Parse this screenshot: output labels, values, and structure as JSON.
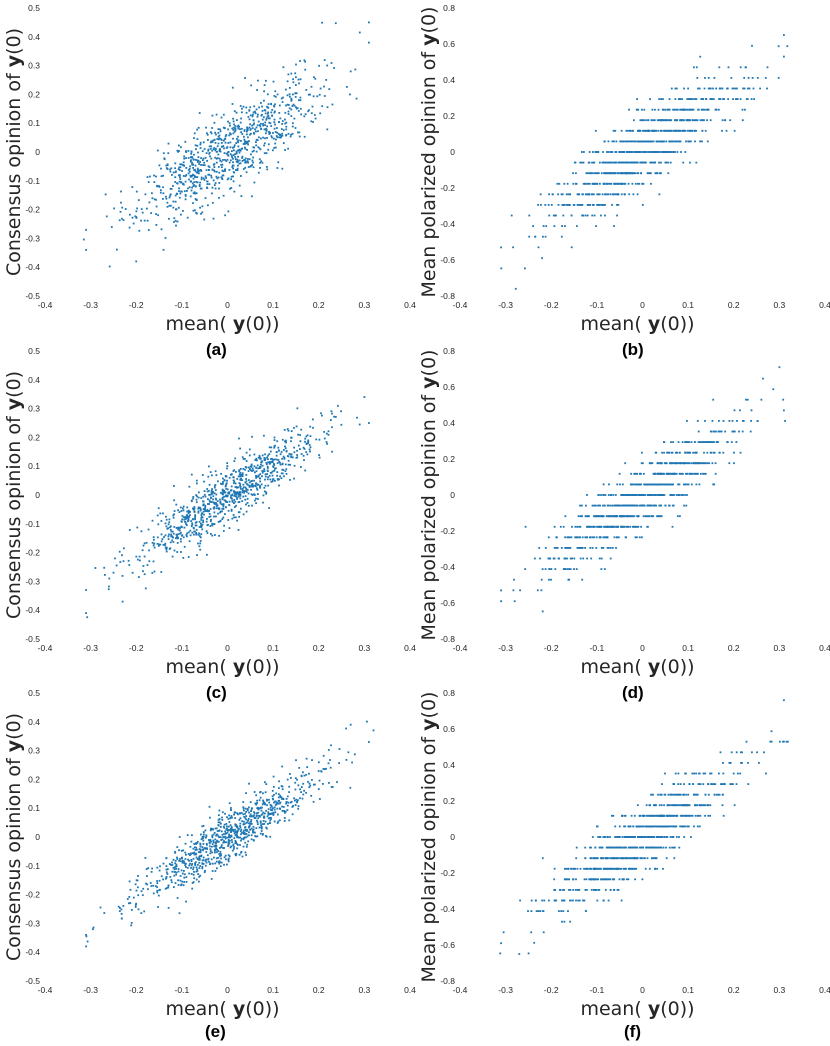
{
  "chart_data": [
    {
      "type": "scatter",
      "panel_label": "(a)",
      "xlabel_prefix": "mean( ",
      "xlabel_bold": "y",
      "xlabel_suffix": "(0))",
      "ylabel_prefix": "Consensus opinion of  ",
      "ylabel_bold": "y",
      "ylabel_suffix": "(0)",
      "xlim": [
        -0.4,
        0.4
      ],
      "ylim": [
        -0.5,
        0.5
      ],
      "xticks": [
        -0.4,
        -0.3,
        -0.2,
        -0.1,
        0,
        0.1,
        0.2,
        0.3,
        0.4
      ],
      "yticks": [
        -0.5,
        -0.4,
        -0.3,
        -0.2,
        -0.1,
        0,
        0.1,
        0.2,
        0.3,
        0.4,
        0.5
      ],
      "points": {
        "n": 900,
        "seed": 11,
        "slope": 1.0,
        "noise": 0.07,
        "quantize": 0,
        "extremes": [
          [
            0.31,
            0.45
          ],
          [
            0.31,
            0.38
          ],
          [
            -0.31,
            -0.27
          ],
          [
            -0.31,
            -0.34
          ],
          [
            -0.2,
            -0.38
          ],
          [
            0.27,
            0.28
          ]
        ]
      },
      "color": "#1f77b4"
    },
    {
      "type": "scatter",
      "panel_label": "(b)",
      "xlabel_prefix": "mean( ",
      "xlabel_bold": "y",
      "xlabel_suffix": "(0))",
      "ylabel_prefix": "Mean polarized opinion of  ",
      "ylabel_bold": "y",
      "ylabel_suffix": "(0)",
      "xlim": [
        -0.4,
        0.4
      ],
      "ylim": [
        -0.8,
        0.8
      ],
      "xticks": [
        -0.4,
        -0.3,
        -0.2,
        -0.1,
        0,
        0.1,
        0.2,
        0.3,
        0.4
      ],
      "yticks": [
        -0.8,
        -0.6,
        -0.4,
        -0.2,
        0,
        0.2,
        0.4,
        0.6,
        0.8
      ],
      "points": {
        "n": 900,
        "seed": 23,
        "slope": 1.75,
        "noise": 0.1,
        "quantize": 0.0588,
        "extremes": [
          [
            0.31,
            0.65
          ],
          [
            0.31,
            0.53
          ],
          [
            -0.31,
            -0.53
          ],
          [
            0.24,
            0.59
          ],
          [
            -0.22,
            -0.59
          ]
        ]
      },
      "color": "#1f77b4"
    },
    {
      "type": "scatter",
      "panel_label": "(c)",
      "xlabel_prefix": "mean( ",
      "xlabel_bold": "y",
      "xlabel_suffix": "(0))",
      "ylabel_prefix": "Consensus opinion of  ",
      "ylabel_bold": "y",
      "ylabel_suffix": "(0)",
      "xlim": [
        -0.4,
        0.4
      ],
      "ylim": [
        -0.5,
        0.5
      ],
      "xticks": [
        -0.4,
        -0.3,
        -0.2,
        -0.1,
        0,
        0.1,
        0.2,
        0.3,
        0.4
      ],
      "yticks": [
        -0.5,
        -0.4,
        -0.3,
        -0.2,
        -0.1,
        0,
        0.1,
        0.2,
        0.3,
        0.4,
        0.5
      ],
      "points": {
        "n": 900,
        "seed": 37,
        "slope": 1.05,
        "noise": 0.05,
        "quantize": 0,
        "extremes": [
          [
            0.31,
            0.25
          ],
          [
            0.3,
            0.34
          ],
          [
            -0.31,
            -0.41
          ],
          [
            -0.31,
            -0.33
          ],
          [
            -0.23,
            -0.37
          ]
        ]
      },
      "color": "#1f77b4"
    },
    {
      "type": "scatter",
      "panel_label": "(d)",
      "xlabel_prefix": "mean( ",
      "xlabel_bold": "y",
      "xlabel_suffix": "(0))",
      "ylabel_prefix": "Mean polarized opinion of  ",
      "ylabel_bold": "y",
      "ylabel_suffix": "(0)",
      "xlim": [
        -0.4,
        0.4
      ],
      "ylim": [
        -0.8,
        0.8
      ],
      "xticks": [
        -0.4,
        -0.3,
        -0.2,
        -0.1,
        0,
        0.1,
        0.2,
        0.3,
        0.4
      ],
      "yticks": [
        -0.8,
        -0.6,
        -0.4,
        -0.2,
        0,
        0.2,
        0.4,
        0.6,
        0.8
      ],
      "points": {
        "n": 900,
        "seed": 41,
        "slope": 1.75,
        "noise": 0.09,
        "quantize": 0.0588,
        "extremes": [
          [
            0.3,
            0.71
          ],
          [
            0.31,
            0.47
          ],
          [
            -0.31,
            -0.59
          ],
          [
            -0.31,
            -0.53
          ],
          [
            -0.28,
            -0.59
          ]
        ]
      },
      "color": "#1f77b4"
    },
    {
      "type": "scatter",
      "panel_label": "(e)",
      "xlabel_prefix": "mean( ",
      "xlabel_bold": "y",
      "xlabel_suffix": "(0))",
      "ylabel_prefix": "Consensus opinion of  ",
      "ylabel_bold": "y",
      "ylabel_suffix": "(0)",
      "xlim": [
        -0.4,
        0.4
      ],
      "ylim": [
        -0.5,
        0.5
      ],
      "xticks": [
        -0.4,
        -0.3,
        -0.2,
        -0.1,
        0,
        0.1,
        0.2,
        0.3,
        0.4
      ],
      "yticks": [
        -0.5,
        -0.4,
        -0.3,
        -0.2,
        -0.1,
        0,
        0.1,
        0.2,
        0.3,
        0.4,
        0.5
      ],
      "points": {
        "n": 900,
        "seed": 53,
        "slope": 1.05,
        "noise": 0.045,
        "quantize": 0,
        "extremes": [
          [
            0.32,
            0.37
          ],
          [
            0.31,
            0.33
          ],
          [
            -0.31,
            -0.34
          ],
          [
            -0.31,
            -0.38
          ],
          [
            0.27,
            0.39
          ]
        ]
      },
      "color": "#1f77b4"
    },
    {
      "type": "scatter",
      "panel_label": "(f)",
      "xlabel_prefix": "mean( ",
      "xlabel_bold": "y",
      "xlabel_suffix": "(0))",
      "ylabel_prefix": "Mean polarized opinion of  ",
      "ylabel_bold": "y",
      "ylabel_suffix": "(0)",
      "xlim": [
        -0.4,
        0.4
      ],
      "ylim": [
        -0.8,
        0.8
      ],
      "xticks": [
        -0.4,
        -0.3,
        -0.2,
        -0.1,
        0,
        0.1,
        0.2,
        0.3,
        0.4
      ],
      "yticks": [
        -0.8,
        -0.6,
        -0.4,
        -0.2,
        0,
        0.2,
        0.4,
        0.6,
        0.8
      ],
      "points": {
        "n": 900,
        "seed": 67,
        "slope": 1.75,
        "noise": 0.09,
        "quantize": 0.0588,
        "extremes": [
          [
            0.31,
            0.76
          ],
          [
            0.31,
            0.53
          ],
          [
            -0.31,
            -0.59
          ],
          [
            -0.27,
            -0.65
          ],
          [
            0.28,
            0.53
          ]
        ]
      },
      "color": "#1f77b4"
    }
  ]
}
